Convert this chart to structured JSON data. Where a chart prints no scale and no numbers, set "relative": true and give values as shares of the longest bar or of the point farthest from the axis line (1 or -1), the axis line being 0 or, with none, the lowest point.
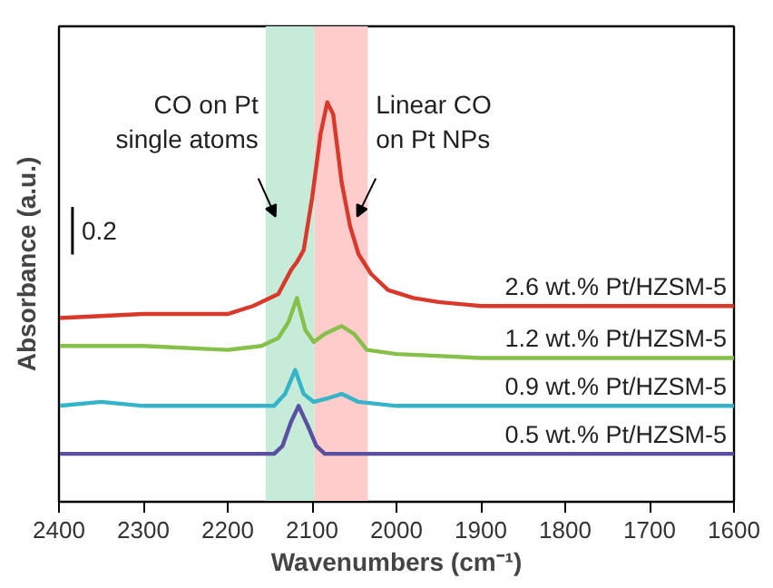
{
  "chart_data": {
    "type": "line",
    "relative": true,
    "xlabel": "Wavenumbers (cm⁻¹)",
    "ylabel": "Absorbance (a.u.)",
    "xlim": [
      2400,
      1600
    ],
    "xticks": [
      2400,
      2300,
      2200,
      2100,
      2000,
      1900,
      1800,
      1700,
      1600
    ],
    "grid": false,
    "legend": false,
    "marker": "none",
    "line_style": "solid",
    "annotations": [
      "0.2"
    ],
    "bands": [
      {
        "axis": "x",
        "from": 2155,
        "to": 2097,
        "label": "CO on Pt\nsingle atoms",
        "color": "#c6ebd9"
      },
      {
        "axis": "x",
        "from": 2097,
        "to": 2034,
        "label": "Linear CO\non Pt NPs",
        "color": "#ffcccc"
      }
    ],
    "series": [
      {
        "name": "2.6 wt.% Pt/HZSM-5",
        "color": "#d8392b",
        "x": [
          2400,
          2300,
          2200,
          2170,
          2140,
          2125,
          2118,
          2110,
          2100,
          2090,
          2082,
          2075,
          2065,
          2055,
          2045,
          2030,
          2010,
          1980,
          1950,
          1900,
          1800,
          1700,
          1600
        ],
        "values": [
          0.46,
          0.47,
          0.47,
          0.49,
          0.52,
          0.58,
          0.6,
          0.63,
          0.76,
          0.92,
          1.0,
          0.97,
          0.8,
          0.69,
          0.62,
          0.57,
          0.53,
          0.51,
          0.5,
          0.49,
          0.49,
          0.49,
          0.49
        ]
      },
      {
        "name": "1.2 wt.% Pt/HZSM-5",
        "color": "#86c04a",
        "x": [
          2400,
          2300,
          2200,
          2160,
          2140,
          2128,
          2118,
          2108,
          2098,
          2085,
          2065,
          2050,
          2035,
          2000,
          1900,
          1800,
          1700,
          1600
        ],
        "values": [
          0.39,
          0.39,
          0.38,
          0.39,
          0.41,
          0.45,
          0.51,
          0.43,
          0.4,
          0.42,
          0.44,
          0.42,
          0.38,
          0.37,
          0.36,
          0.36,
          0.36,
          0.36
        ]
      },
      {
        "name": "0.9 wt.% Pt/HZSM-5",
        "color": "#35b3c9",
        "x": [
          2400,
          2350,
          2300,
          2200,
          2145,
          2132,
          2120,
          2110,
          2098,
          2080,
          2065,
          2045,
          2000,
          1900,
          1800,
          1700,
          1600
        ],
        "values": [
          0.24,
          0.25,
          0.24,
          0.24,
          0.24,
          0.27,
          0.33,
          0.27,
          0.25,
          0.26,
          0.27,
          0.25,
          0.24,
          0.24,
          0.24,
          0.24,
          0.24
        ]
      },
      {
        "name": "0.5 wt.% Pt/HZSM-5",
        "color": "#5a4fa0",
        "x": [
          2400,
          2200,
          2145,
          2135,
          2125,
          2116,
          2105,
          2095,
          2085,
          2000,
          1800,
          1600
        ],
        "values": [
          0.12,
          0.12,
          0.12,
          0.14,
          0.2,
          0.24,
          0.19,
          0.14,
          0.12,
          0.12,
          0.12,
          0.12
        ]
      }
    ]
  }
}
